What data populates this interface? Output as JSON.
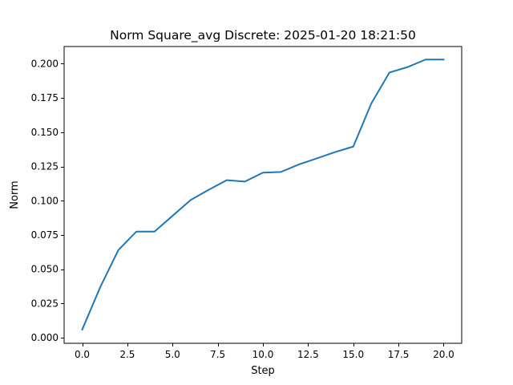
{
  "chart_data": {
    "type": "line",
    "title": "Norm Square_avg Discrete: 2025-01-20 18:21:50",
    "xlabel": "Step",
    "ylabel": "Norm",
    "xlim": [
      -1.0,
      21.0
    ],
    "ylim": [
      -0.004,
      0.2125
    ],
    "grid": false,
    "x_ticks": [
      0.0,
      2.5,
      5.0,
      7.5,
      10.0,
      12.5,
      15.0,
      17.5,
      20.0
    ],
    "x_tick_labels": [
      "0.0",
      "2.5",
      "5.0",
      "7.5",
      "10.0",
      "12.5",
      "15.0",
      "17.5",
      "20.0"
    ],
    "y_ticks": [
      0.0,
      0.025,
      0.05,
      0.075,
      0.1,
      0.125,
      0.15,
      0.175,
      0.2
    ],
    "y_tick_labels": [
      "0.000",
      "0.025",
      "0.050",
      "0.075",
      "0.100",
      "0.125",
      "0.150",
      "0.175",
      "0.200"
    ],
    "series": [
      {
        "color": "#1f77b4",
        "x": [
          0,
          1,
          2,
          3,
          4,
          5,
          6,
          7,
          8,
          9,
          10,
          11,
          12,
          13,
          14,
          15,
          16,
          17,
          18,
          19,
          20
        ],
        "y": [
          0.006,
          0.037,
          0.064,
          0.0775,
          0.0775,
          0.089,
          0.1005,
          0.108,
          0.115,
          0.114,
          0.1205,
          0.121,
          0.1265,
          0.131,
          0.1355,
          0.1395,
          0.171,
          0.1935,
          0.1975,
          0.203,
          0.203
        ]
      }
    ]
  }
}
